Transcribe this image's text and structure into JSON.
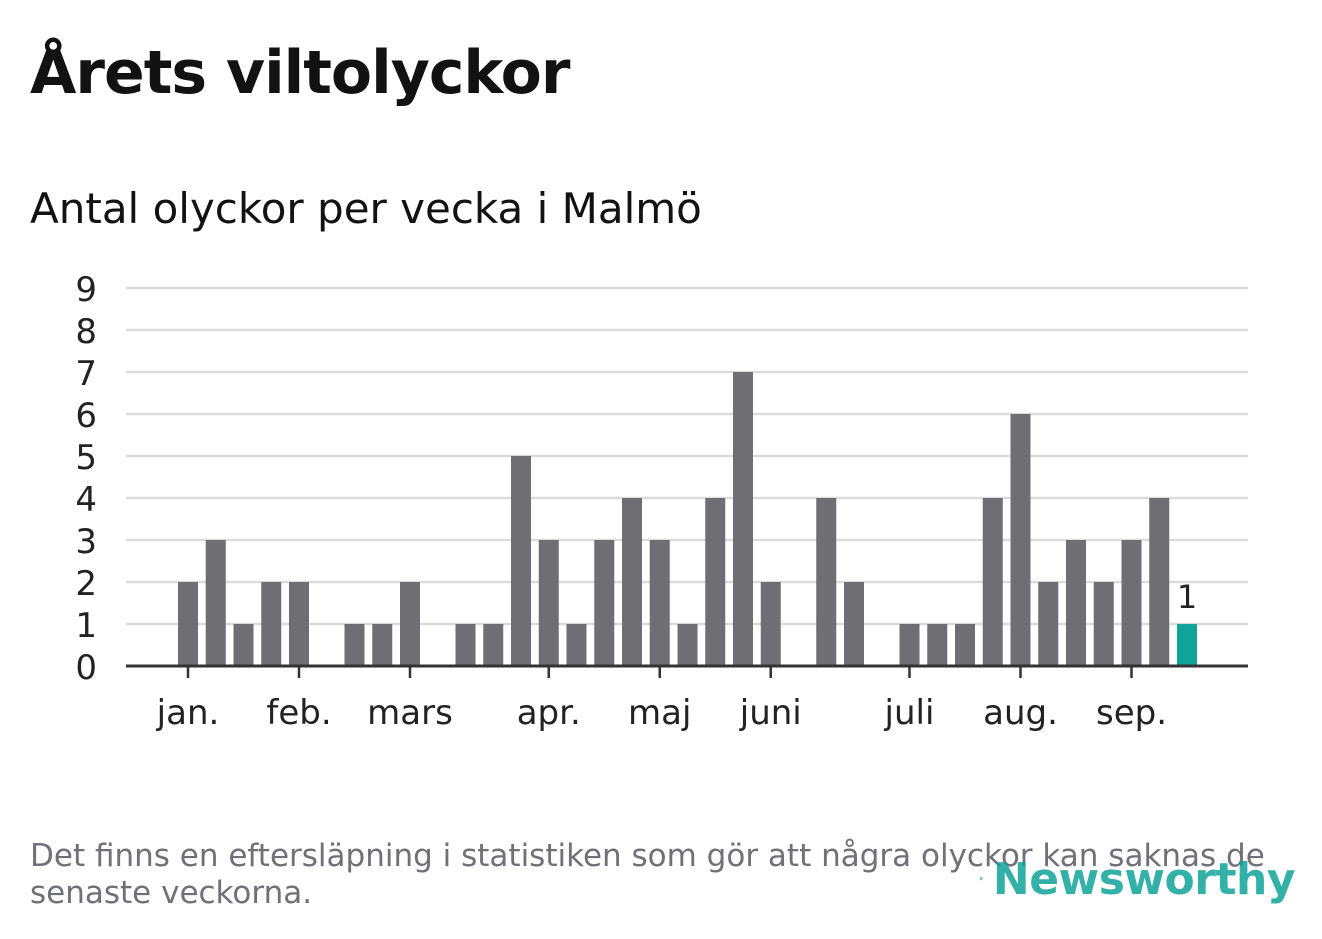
{
  "header": {
    "title": "Årets viltolyckor",
    "subtitle": "Antal olyckor per vecka i Malmö"
  },
  "footer": {
    "note": "Det finns en eftersläpning i statistiken som gör att några olyckor kan saknas de senaste veckorna.",
    "brand": "Newsworthy"
  },
  "colors": {
    "bar": "#6f6e73",
    "highlight": "#0fa39a",
    "grid": "#dcdcdc",
    "axis": "#333333",
    "brand": "#10a39a"
  },
  "chart_data": {
    "type": "bar",
    "weeks": [
      1,
      2,
      3,
      4,
      5,
      6,
      7,
      8,
      9,
      10,
      11,
      12,
      13,
      14,
      15,
      16,
      17,
      18,
      19,
      20,
      21,
      22,
      23,
      24,
      25,
      26,
      27,
      28,
      29,
      30,
      31,
      32,
      33,
      34,
      35,
      36,
      37,
      38,
      39,
      40
    ],
    "values": [
      0,
      0,
      2,
      3,
      1,
      2,
      2,
      0,
      1,
      1,
      2,
      0,
      1,
      1,
      5,
      3,
      1,
      3,
      4,
      3,
      1,
      4,
      7,
      2,
      0,
      4,
      2,
      0,
      1,
      1,
      1,
      4,
      6,
      2,
      3,
      2,
      3,
      4,
      1,
      null
    ],
    "highlight_week": 39,
    "highlight_label": "1",
    "ylim": [
      0,
      9
    ],
    "yticks": [
      "0",
      "1",
      "2",
      "3",
      "4",
      "5",
      "6",
      "7",
      "8",
      "9"
    ],
    "xticks": [
      {
        "label": "jan.",
        "week": 3
      },
      {
        "label": "feb.",
        "week": 7
      },
      {
        "label": "mars",
        "week": 11
      },
      {
        "label": "apr.",
        "week": 16
      },
      {
        "label": "maj",
        "week": 20
      },
      {
        "label": "juni",
        "week": 24
      },
      {
        "label": "juli",
        "week": 29
      },
      {
        "label": "aug.",
        "week": 33
      },
      {
        "label": "sep.",
        "week": 37
      }
    ],
    "grid": true,
    "legend": "none"
  }
}
